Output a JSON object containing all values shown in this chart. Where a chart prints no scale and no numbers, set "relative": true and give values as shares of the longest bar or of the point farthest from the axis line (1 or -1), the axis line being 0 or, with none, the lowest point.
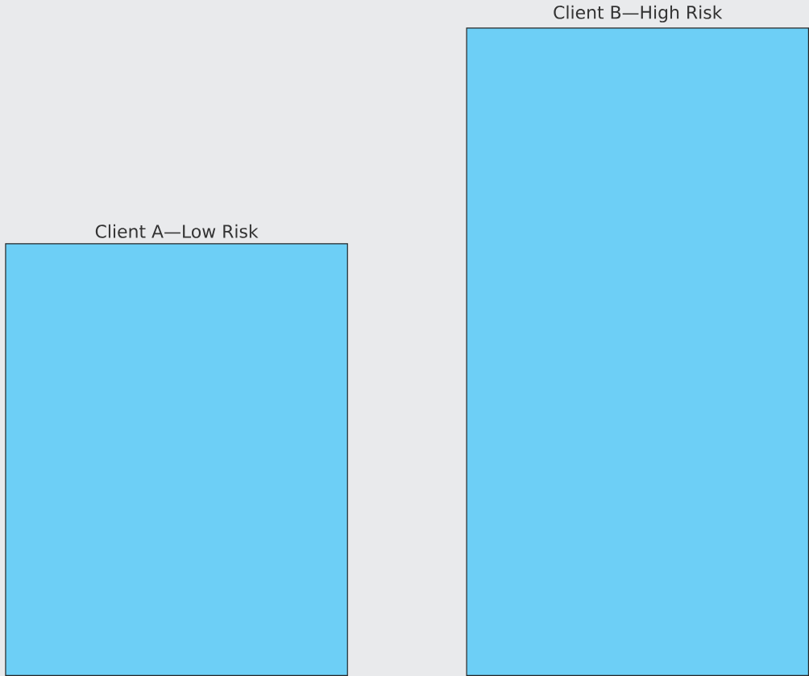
{
  "chart_data": {
    "type": "bar",
    "categories": [
      "Client A—Low Risk",
      "Client B—High Risk"
    ],
    "values": [
      0.667,
      1
    ],
    "color": "#6dcff6",
    "relative": true
  }
}
